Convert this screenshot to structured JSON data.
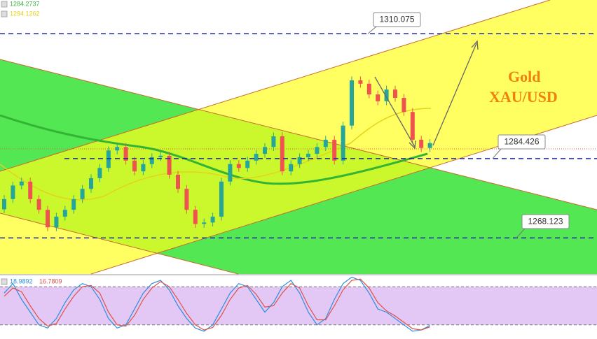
{
  "chart_data": [
    {
      "type": "candlestick",
      "title": "Gold",
      "subtitle": "XAU/USD",
      "ylim": [
        1261,
        1317
      ],
      "up_color": "#26a69a",
      "down_color": "#ef5350",
      "indicators": [
        {
          "color": "#3cb043",
          "current_value": 1284.2737
        },
        {
          "color": "#e6d21a",
          "current_value": 1294.1262
        }
      ],
      "levels": [
        1310.075,
        1284.426,
        1268.123
      ],
      "level_color": "#1a2a9c",
      "candles": [
        [
          1274.0,
          1276.9,
          1273.2,
          1276.1
        ],
        [
          1276.1,
          1279.7,
          1275.3,
          1278.9
        ],
        [
          1278.9,
          1280.5,
          1278.1,
          1279.7
        ],
        [
          1279.7,
          1280.5,
          1275.3,
          1276.1
        ],
        [
          1276.1,
          1276.9,
          1273.1,
          1273.9
        ],
        [
          1273.9,
          1274.7,
          1269.5,
          1270.3
        ],
        [
          1270.3,
          1273.3,
          1269.5,
          1272.5
        ],
        [
          1272.5,
          1274.7,
          1271.7,
          1273.9
        ],
        [
          1273.9,
          1276.9,
          1273.1,
          1276.1
        ],
        [
          1276.1,
          1279.0,
          1275.3,
          1278.2
        ],
        [
          1278.2,
          1281.2,
          1277.4,
          1280.4
        ],
        [
          1280.4,
          1283.3,
          1279.6,
          1282.5
        ],
        [
          1282.5,
          1286.9,
          1281.7,
          1286.1
        ],
        [
          1286.1,
          1287.6,
          1285.3,
          1286.8
        ],
        [
          1286.8,
          1287.6,
          1283.2,
          1284.0
        ],
        [
          1284.0,
          1284.8,
          1281.0,
          1281.8
        ],
        [
          1281.8,
          1284.1,
          1281.0,
          1283.3
        ],
        [
          1283.3,
          1285.5,
          1282.5,
          1284.7
        ],
        [
          1284.7,
          1285.8,
          1283.9,
          1285.0
        ],
        [
          1285.0,
          1285.8,
          1280.3,
          1281.1
        ],
        [
          1281.1,
          1281.9,
          1277.4,
          1278.2
        ],
        [
          1278.2,
          1279.0,
          1273.1,
          1273.9
        ],
        [
          1273.9,
          1274.7,
          1270.2,
          1271.0
        ],
        [
          1271.0,
          1272.1,
          1270.2,
          1271.3
        ],
        [
          1271.3,
          1273.3,
          1270.5,
          1272.5
        ],
        [
          1272.5,
          1280.5,
          1271.7,
          1279.7
        ],
        [
          1279.7,
          1284.1,
          1278.9,
          1283.3
        ],
        [
          1283.3,
          1284.1,
          1281.7,
          1282.5
        ],
        [
          1282.5,
          1284.8,
          1281.7,
          1284.0
        ],
        [
          1284.0,
          1286.2,
          1283.2,
          1285.4
        ],
        [
          1285.4,
          1287.6,
          1284.6,
          1286.8
        ],
        [
          1286.8,
          1289.8,
          1286.0,
          1289.0
        ],
        [
          1289.0,
          1289.8,
          1281.0,
          1281.8
        ],
        [
          1281.8,
          1284.1,
          1281.0,
          1283.3
        ],
        [
          1283.3,
          1285.5,
          1282.5,
          1284.7
        ],
        [
          1284.7,
          1286.2,
          1283.9,
          1285.4
        ],
        [
          1285.4,
          1287.6,
          1284.6,
          1286.8
        ],
        [
          1286.8,
          1289.1,
          1286.0,
          1288.3
        ],
        [
          1288.3,
          1289.1,
          1283.2,
          1284.0
        ],
        [
          1284.0,
          1292.0,
          1283.2,
          1291.2
        ],
        [
          1291.2,
          1301.3,
          1290.4,
          1300.5
        ],
        [
          1300.5,
          1301.3,
          1299.0,
          1299.8
        ],
        [
          1299.8,
          1300.6,
          1296.8,
          1297.6
        ],
        [
          1297.6,
          1298.4,
          1295.4,
          1296.2
        ],
        [
          1296.2,
          1299.4,
          1295.4,
          1298.6
        ],
        [
          1298.6,
          1299.4,
          1296.1,
          1296.9
        ],
        [
          1296.9,
          1297.7,
          1293.2,
          1294.0
        ],
        [
          1294.0,
          1294.8,
          1287.5,
          1288.3
        ],
        [
          1288.3,
          1289.1,
          1285.8,
          1286.6
        ],
        [
          1286.6,
          1288.4,
          1285.8,
          1287.6
        ]
      ]
    },
    {
      "type": "line",
      "ylim": [
        0,
        100
      ],
      "bands": [
        80,
        20
      ],
      "band_color": "#e3c8f5",
      "series": [
        {
          "color": "#2a8fe0",
          "current_value": 18.9892,
          "values": [
            70,
            85,
            60,
            40,
            20,
            15,
            30,
            55,
            75,
            85,
            80,
            60,
            30,
            15,
            20,
            45,
            70,
            85,
            90,
            75,
            50,
            30,
            15,
            10,
            20,
            45,
            70,
            85,
            80,
            60,
            40,
            55,
            80,
            90,
            70,
            40,
            20,
            30,
            60,
            85,
            95,
            90,
            70,
            45,
            40,
            30,
            20,
            10,
            12,
            18.9892
          ]
        },
        {
          "color": "#e0504a",
          "current_value": 16.7809,
          "values": [
            65,
            78,
            72,
            50,
            30,
            18,
            22,
            45,
            65,
            80,
            82,
            70,
            40,
            20,
            18,
            35,
            60,
            78,
            88,
            80,
            60,
            38,
            20,
            12,
            16,
            35,
            60,
            78,
            82,
            68,
            48,
            50,
            70,
            85,
            78,
            50,
            28,
            28,
            50,
            75,
            90,
            92,
            78,
            55,
            42,
            34,
            24,
            14,
            12,
            16.7809
          ]
        }
      ]
    }
  ]
}
